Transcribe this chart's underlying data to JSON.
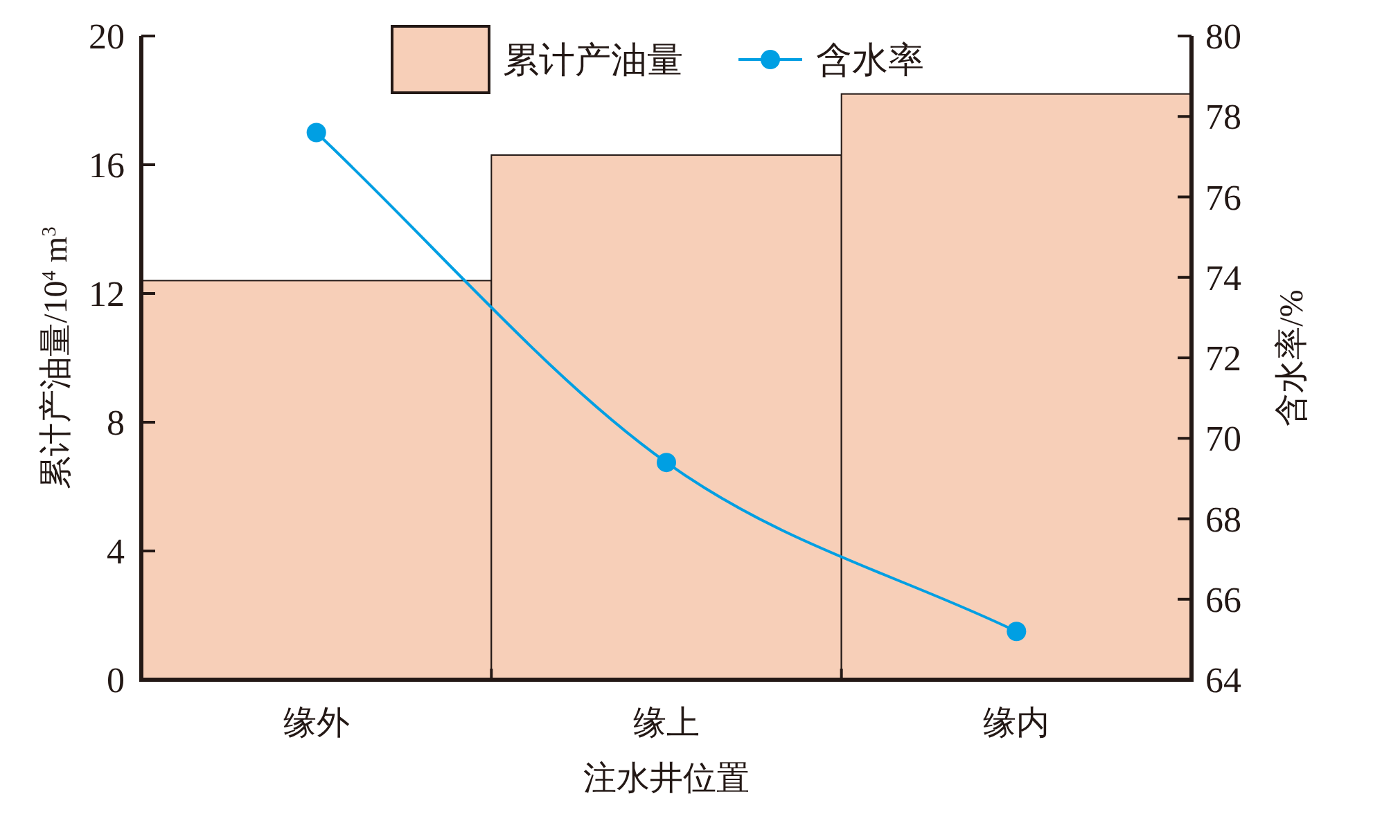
{
  "chart_data": {
    "type": "bar",
    "xlabel": "注水井位置",
    "ylabel": "累计产油量/10$^{4}$ m$^{3}$",
    "y2label": "含水率/%",
    "categories": [
      "缘外",
      "缘上",
      "缘内"
    ],
    "series": [
      {
        "name": "累计产油量",
        "color": "#f7cfb8",
        "values": [
          12.4,
          16.3,
          18.2
        ]
      },
      {
        "name": "含水率",
        "type": "line",
        "axis": "y2",
        "color": "#009fe3",
        "values": [
          77.6,
          69.4,
          65.2
        ]
      }
    ],
    "ylim": [
      0,
      20
    ],
    "yticks": [
      0,
      4,
      8,
      12,
      16,
      20
    ],
    "y2lim": [
      64,
      80
    ],
    "y2ticks": [
      64,
      66,
      68,
      70,
      72,
      74,
      76,
      78,
      80
    ],
    "marker": "circle",
    "line_style": "solid",
    "legend": "top",
    "grid": false
  }
}
